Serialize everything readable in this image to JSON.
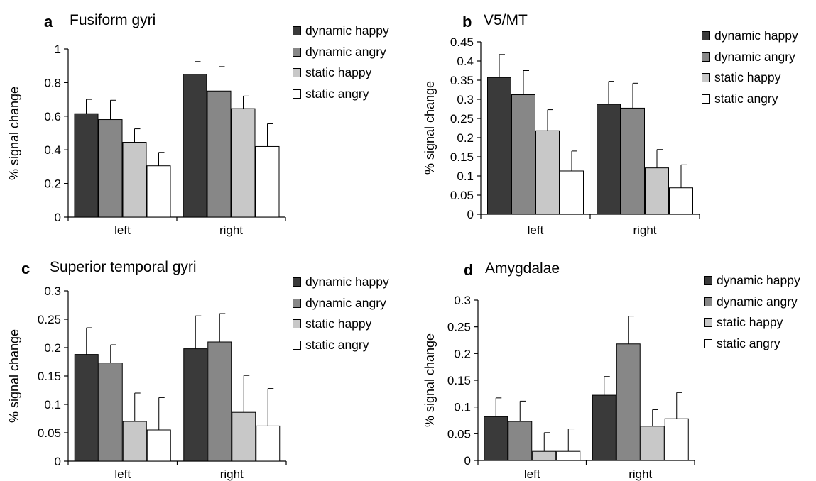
{
  "colors": {
    "dynamic_happy": "#3a3a3a",
    "dynamic_angry": "#878787",
    "static_happy": "#c8c8c8",
    "static_angry": "#ffffff"
  },
  "chart_data": [
    {
      "type": "bar",
      "panel": "a",
      "title": "Fusiform gyri",
      "xlabel": "",
      "ylabel": "% signal change",
      "categories": [
        "left",
        "right"
      ],
      "ylim": [
        0,
        1
      ],
      "yticks": [
        "0",
        "0.2",
        "0.4",
        "0.6",
        "0.8",
        "1"
      ],
      "grid": false,
      "legend_position": "top-right",
      "series": [
        {
          "name": "dynamic happy",
          "values": [
            0.615,
            0.85
          ],
          "errors": [
            0.085,
            0.075
          ]
        },
        {
          "name": "dynamic angry",
          "values": [
            0.58,
            0.75
          ],
          "errors": [
            0.115,
            0.145
          ]
        },
        {
          "name": "static happy",
          "values": [
            0.445,
            0.645
          ],
          "errors": [
            0.08,
            0.075
          ]
        },
        {
          "name": "static angry",
          "values": [
            0.305,
            0.42
          ],
          "errors": [
            0.08,
            0.135
          ]
        }
      ]
    },
    {
      "type": "bar",
      "panel": "b",
      "title": "V5/MT",
      "xlabel": "",
      "ylabel": "% signal change",
      "categories": [
        "left",
        "right"
      ],
      "ylim": [
        0,
        0.45
      ],
      "yticks": [
        "0",
        "0.05",
        "0.1",
        "0.15",
        "0.2",
        "0.25",
        "0.3",
        "0.35",
        "0.4",
        "0.45"
      ],
      "grid": false,
      "legend_position": "top-right",
      "series": [
        {
          "name": "dynamic happy",
          "values": [
            0.357,
            0.287
          ],
          "errors": [
            0.06,
            0.06
          ]
        },
        {
          "name": "dynamic angry",
          "values": [
            0.312,
            0.277
          ],
          "errors": [
            0.063,
            0.065
          ]
        },
        {
          "name": "static happy",
          "values": [
            0.218,
            0.121
          ],
          "errors": [
            0.055,
            0.048
          ]
        },
        {
          "name": "static angry",
          "values": [
            0.113,
            0.069
          ],
          "errors": [
            0.052,
            0.06
          ]
        }
      ]
    },
    {
      "type": "bar",
      "panel": "c",
      "title": "Superior temporal gyri",
      "xlabel": "",
      "ylabel": "% signal change",
      "categories": [
        "left",
        "right"
      ],
      "ylim": [
        0,
        0.3
      ],
      "yticks": [
        "0",
        "0.05",
        "0.1",
        "0.15",
        "0.2",
        "0.25",
        "0.3"
      ],
      "grid": false,
      "legend_position": "top-right",
      "series": [
        {
          "name": "dynamic happy",
          "values": [
            0.188,
            0.198
          ],
          "errors": [
            0.047,
            0.058
          ]
        },
        {
          "name": "dynamic angry",
          "values": [
            0.173,
            0.21
          ],
          "errors": [
            0.032,
            0.05
          ]
        },
        {
          "name": "static happy",
          "values": [
            0.07,
            0.086
          ],
          "errors": [
            0.05,
            0.065
          ]
        },
        {
          "name": "static angry",
          "values": [
            0.055,
            0.062
          ],
          "errors": [
            0.057,
            0.066
          ]
        }
      ]
    },
    {
      "type": "bar",
      "panel": "d",
      "title": "Amygdalae",
      "xlabel": "",
      "ylabel": "% signal change",
      "categories": [
        "left",
        "right"
      ],
      "ylim": [
        0,
        0.3
      ],
      "yticks": [
        "0",
        "0.05",
        "0.1",
        "0.15",
        "0.2",
        "0.25",
        "0.3"
      ],
      "grid": false,
      "legend_position": "top-right",
      "series": [
        {
          "name": "dynamic happy",
          "values": [
            0.082,
            0.122
          ],
          "errors": [
            0.035,
            0.035
          ]
        },
        {
          "name": "dynamic angry",
          "values": [
            0.073,
            0.218
          ],
          "errors": [
            0.038,
            0.052
          ]
        },
        {
          "name": "static happy",
          "values": [
            0.017,
            0.064
          ],
          "errors": [
            0.035,
            0.031
          ]
        },
        {
          "name": "static angry",
          "values": [
            0.017,
            0.078
          ],
          "errors": [
            0.042,
            0.049
          ]
        }
      ]
    }
  ]
}
